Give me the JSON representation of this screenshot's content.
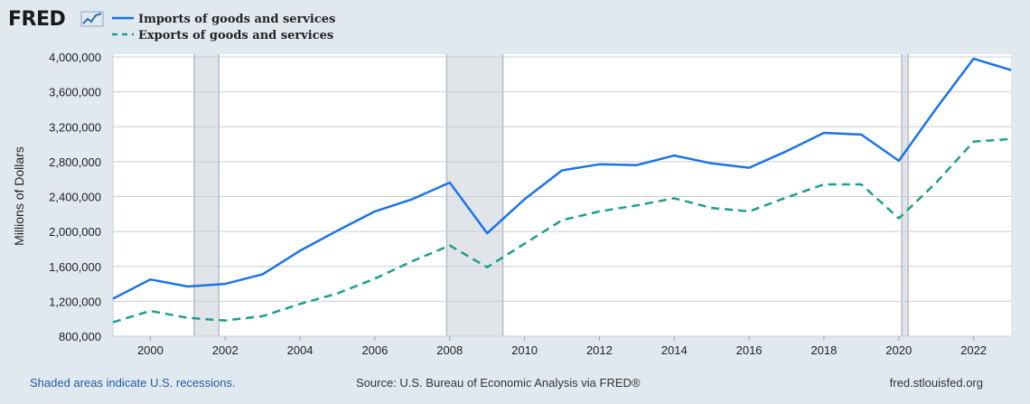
{
  "logo": {
    "text": "FRED",
    "icon": "chart-line-icon"
  },
  "legend": [
    {
      "label": "Imports of goods and services",
      "color": "#1a73e8",
      "style": "solid"
    },
    {
      "label": "Exports of goods and services",
      "color": "#1e9e8a",
      "style": "dashed"
    }
  ],
  "footer": {
    "left": "Shaded areas indicate U.S. recessions.",
    "middle": "Source: U.S. Bureau of Economic Analysis via FRED®",
    "right": "fred.stlouisfed.org"
  },
  "chart_data": {
    "type": "line",
    "title": "",
    "xlabel": "",
    "ylabel": "Millions of Dollars",
    "xlim": [
      1999,
      2023
    ],
    "ylim": [
      800000,
      4000000
    ],
    "yticks": [
      800000,
      1200000,
      1600000,
      2000000,
      2400000,
      2800000,
      3200000,
      3600000,
      4000000
    ],
    "ytick_labels": [
      "800,000",
      "1,200,000",
      "1,600,000",
      "2,000,000",
      "2,400,000",
      "2,800,000",
      "3,200,000",
      "3,600,000",
      "4,000,000"
    ],
    "xticks": [
      2000,
      2002,
      2004,
      2006,
      2008,
      2010,
      2012,
      2014,
      2016,
      2018,
      2020,
      2022
    ],
    "xtick_labels": [
      "2000",
      "2002",
      "2004",
      "2006",
      "2008",
      "2010",
      "2012",
      "2014",
      "2016",
      "2018",
      "2020",
      "2022"
    ],
    "grid": true,
    "legend_position": "top-left",
    "x": [
      1999,
      2000,
      2001,
      2002,
      2003,
      2004,
      2005,
      2006,
      2007,
      2008,
      2009,
      2010,
      2011,
      2012,
      2013,
      2014,
      2015,
      2016,
      2017,
      2018,
      2019,
      2020,
      2021,
      2022,
      2023
    ],
    "series": [
      {
        "name": "Imports of goods and services",
        "color": "#1a73e8",
        "style": "solid",
        "values": [
          1230000,
          1450000,
          1370000,
          1400000,
          1510000,
          1780000,
          2010000,
          2230000,
          2370000,
          2560000,
          1980000,
          2370000,
          2700000,
          2770000,
          2760000,
          2870000,
          2780000,
          2730000,
          2920000,
          3130000,
          3110000,
          2810000,
          3410000,
          3980000,
          3850000
        ]
      },
      {
        "name": "Exports of goods and services",
        "color": "#1e9e8a",
        "style": "dashed",
        "values": [
          960000,
          1090000,
          1010000,
          980000,
          1030000,
          1170000,
          1290000,
          1460000,
          1660000,
          1840000,
          1590000,
          1860000,
          2130000,
          2230000,
          2300000,
          2380000,
          2270000,
          2230000,
          2390000,
          2540000,
          2540000,
          2150000,
          2560000,
          3030000,
          3060000
        ]
      }
    ],
    "recessions": [
      [
        2001.17,
        2001.83
      ],
      [
        2007.92,
        2009.42
      ],
      [
        2020.08,
        2020.25
      ]
    ]
  }
}
